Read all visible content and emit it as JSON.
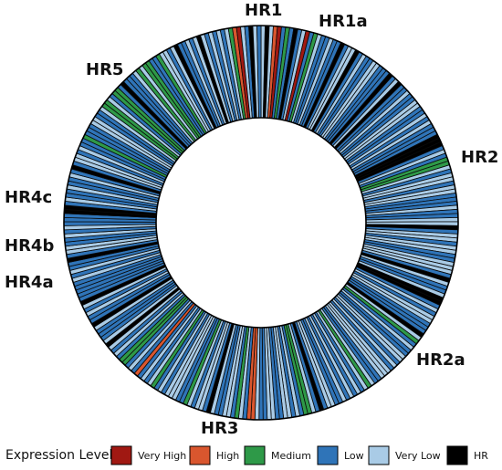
{
  "diagram": {
    "type": "circular-expression-map",
    "region_labels": [
      "HR1",
      "HR1a",
      "HR2",
      "HR2a",
      "HR3",
      "HR4a",
      "HR4b",
      "HR4c",
      "HR5"
    ],
    "legend": {
      "title": "Expression Level",
      "items": [
        {
          "key": "very_high",
          "label": "Very High",
          "color": "#a01812"
        },
        {
          "key": "high",
          "label": "High",
          "color": "#d9562e"
        },
        {
          "key": "medium",
          "label": "Medium",
          "color": "#2e9948"
        },
        {
          "key": "low",
          "label": "Low",
          "color": "#2f74b8"
        },
        {
          "key": "very_low",
          "label": "Very Low",
          "color": "#a9cbe6"
        },
        {
          "key": "hr",
          "label": "HR",
          "color": "#000000"
        }
      ]
    },
    "segments": [
      "very_low",
      "hr",
      "very_low",
      "high",
      "very_high",
      "low",
      "medium",
      "low",
      "hr",
      "low",
      "very_low",
      "very_high",
      "low",
      "medium",
      "very_low",
      "low",
      "low",
      "very_low",
      "low",
      "low",
      "hr",
      "low",
      "very_low",
      "very_low",
      "hr",
      "low",
      "very_low",
      "low",
      "low",
      "very_low",
      "very_low",
      "low",
      "low",
      "low",
      "hr",
      "low",
      "very_low",
      "hr",
      "low",
      "low",
      "very_low",
      "low",
      "low",
      "very_low",
      "very_low",
      "low",
      "low",
      "very_low",
      "low",
      "very_low",
      "low",
      "low",
      "low",
      "hr",
      "hr",
      "hr",
      "low",
      "very_low",
      "low",
      "medium",
      "medium",
      "very_low",
      "low",
      "very_low",
      "very_low",
      "low",
      "very_low",
      "very_low",
      "low",
      "low",
      "low",
      "very_low",
      "low",
      "low",
      "very_low",
      "very_low",
      "hr",
      "low",
      "very_low",
      "very_low",
      "low",
      "very_low",
      "very_low",
      "low",
      "low",
      "very_low",
      "very_low",
      "very_low",
      "low",
      "hr",
      "very_low",
      "low",
      "low",
      "very_low",
      "hr",
      "hr",
      "low",
      "very_low",
      "low",
      "very_low",
      "very_low",
      "low",
      "low",
      "low",
      "hr",
      "very_low",
      "medium",
      "low",
      "very_low",
      "low",
      "low",
      "very_low",
      "very_low",
      "low",
      "very_low",
      "low",
      "very_low",
      "very_low",
      "very_low",
      "low",
      "low",
      "very_low",
      "medium",
      "very_low",
      "low",
      "very_low",
      "low",
      "very_low",
      "low",
      "very_low",
      "low",
      "low",
      "very_low",
      "very_low",
      "low",
      "hr",
      "low",
      "very_low",
      "medium",
      "medium",
      "low",
      "very_low",
      "low",
      "very_low",
      "very_low",
      "low",
      "low",
      "very_low",
      "very_low",
      "low",
      "low",
      "very_low",
      "high",
      "high",
      "low",
      "very_low",
      "medium",
      "low",
      "very_low",
      "very_low",
      "low",
      "low",
      "very_low",
      "hr",
      "low",
      "very_low",
      "very_low",
      "low",
      "very_low",
      "medium",
      "low",
      "low",
      "very_low",
      "very_low",
      "very_low",
      "low",
      "very_low",
      "low",
      "medium",
      "very_low",
      "low",
      "very_low",
      "low",
      "high",
      "low",
      "very_low",
      "low",
      "medium",
      "medium",
      "low",
      "very_low",
      "low",
      "very_low",
      "hr",
      "very_low",
      "low",
      "low",
      "low",
      "very_low",
      "hr",
      "low",
      "low",
      "very_low",
      "low",
      "very_low",
      "hr",
      "low",
      "low",
      "low",
      "low",
      "low",
      "very_low",
      "low",
      "very_low",
      "low",
      "low",
      "hr",
      "low",
      "very_low",
      "very_low",
      "low",
      "low",
      "very_low",
      "low",
      "very_low",
      "low",
      "low",
      "low",
      "hr",
      "hr",
      "low",
      "very_low",
      "low",
      "low",
      "very_low",
      "low",
      "low",
      "very_low",
      "low",
      "hr",
      "low",
      "very_low",
      "very_low",
      "low",
      "very_low",
      "low",
      "low",
      "medium",
      "low",
      "low",
      "low",
      "very_low",
      "very_low",
      "low",
      "low",
      "very_low",
      "medium",
      "medium",
      "very_low",
      "low",
      "medium",
      "medium",
      "low",
      "hr",
      "low",
      "low",
      "low",
      "very_low",
      "medium",
      "very_low",
      "medium",
      "medium",
      "low",
      "low",
      "medium",
      "very_low",
      "very_low",
      "low",
      "very_low",
      "hr",
      "low",
      "low",
      "very_low",
      "low",
      "very_low",
      "hr",
      "very_low",
      "low",
      "very_low",
      "low",
      "very_low",
      "low",
      "very_low",
      "medium",
      "high",
      "very_high",
      "very_low",
      "low",
      "hr",
      "very_low",
      "low"
    ]
  }
}
